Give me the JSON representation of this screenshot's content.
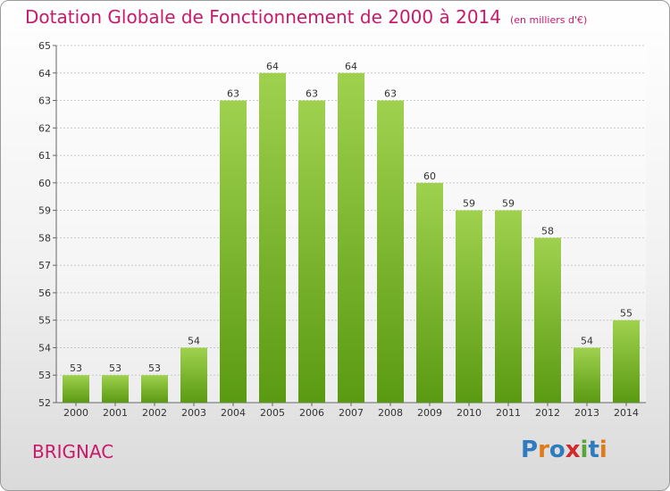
{
  "title": "Dotation Globale de Fonctionnement de 2000 à 2014",
  "subtitle": "(en milliers d'€)",
  "commune": "BRIGNAC",
  "logo": {
    "letters": [
      "P",
      "r",
      "o",
      "x",
      "i",
      "t",
      "i"
    ],
    "colors": [
      "#2f7bbf",
      "#e07a1b",
      "#2f7bbf",
      "#d12a2a",
      "#5aa23a",
      "#2f7bbf",
      "#e07a1b"
    ]
  },
  "colors": {
    "bar_top": "#9fd14f",
    "bar_bottom": "#5a9a12",
    "title": "#c8196b"
  },
  "chart_data": {
    "type": "bar",
    "categories": [
      "2000",
      "2001",
      "2002",
      "2003",
      "2004",
      "2005",
      "2006",
      "2007",
      "2008",
      "2009",
      "2010",
      "2011",
      "2012",
      "2013",
      "2014"
    ],
    "values": [
      53,
      53,
      53,
      54,
      63,
      64,
      63,
      64,
      63,
      60,
      59,
      59,
      58,
      54,
      55
    ],
    "title": "Dotation Globale de Fonctionnement de 2000 à 2014",
    "subtitle": "(en milliers d'€)",
    "xlabel": "",
    "ylabel": "",
    "ylim": [
      52,
      65
    ],
    "yticks": [
      52,
      53,
      54,
      55,
      56,
      57,
      58,
      59,
      60,
      61,
      62,
      63,
      64,
      65
    ],
    "grid": true,
    "legend": "none"
  }
}
